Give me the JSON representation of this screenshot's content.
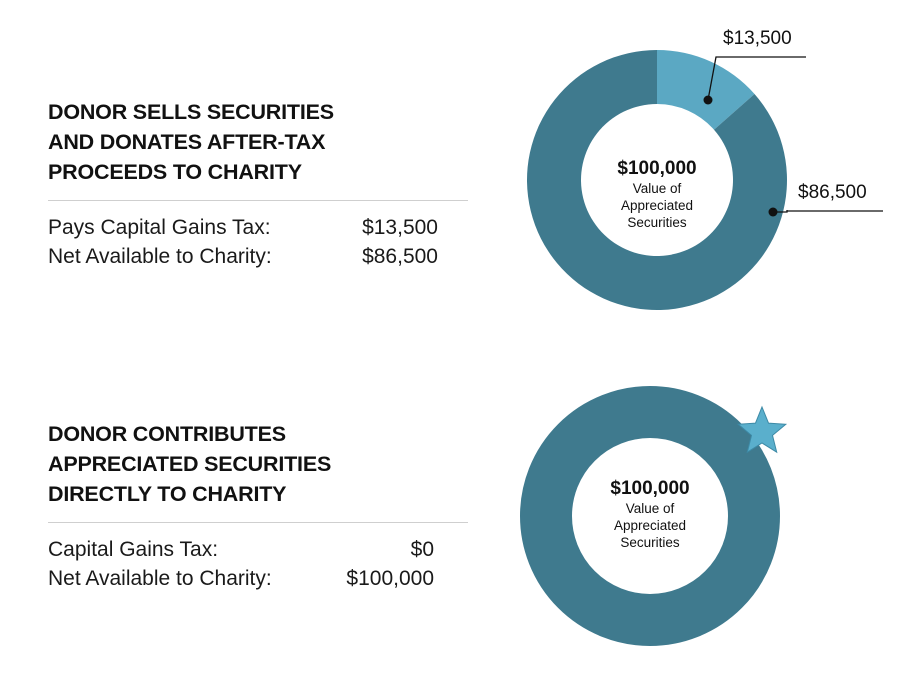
{
  "colors": {
    "dark_teal": "#3f7a8e",
    "light_teal": "#5ba8c3",
    "star": "#5aafcc"
  },
  "sections": [
    {
      "heading": [
        "DONOR SELLS SECURITIES",
        "AND DONATES AFTER-TAX",
        "PROCEEDS TO CHARITY"
      ],
      "rows": [
        {
          "label": "Pays Capital Gains Tax:",
          "value": "$13,500"
        },
        {
          "label": "Net Available to Charity:",
          "value": "$86,500"
        }
      ]
    },
    {
      "heading": [
        "DONOR CONTRIBUTES",
        "APPRECIATED SECURITIES",
        "DIRECTLY TO CHARITY"
      ],
      "rows": [
        {
          "label": "Capital Gains Tax:",
          "value": "$0"
        },
        {
          "label": "Net Available to Charity:",
          "value": "$100,000"
        }
      ]
    }
  ],
  "chart_data": [
    {
      "type": "pie",
      "donut": true,
      "center_value": "$100,000",
      "center_caption": [
        "Value of",
        "Appreciated",
        "Securities"
      ],
      "slices": [
        {
          "label": "$13,500",
          "value": 13500,
          "color": "#5ba8c3"
        },
        {
          "label": "$86,500",
          "value": 86500,
          "color": "#3f7a8e"
        }
      ]
    },
    {
      "type": "pie",
      "donut": true,
      "center_value": "$100,000",
      "center_caption": [
        "Value of",
        "Appreciated",
        "Securities"
      ],
      "slices": [
        {
          "label": "",
          "value": 100000,
          "color": "#3f7a8e"
        }
      ],
      "marker": "star"
    }
  ]
}
